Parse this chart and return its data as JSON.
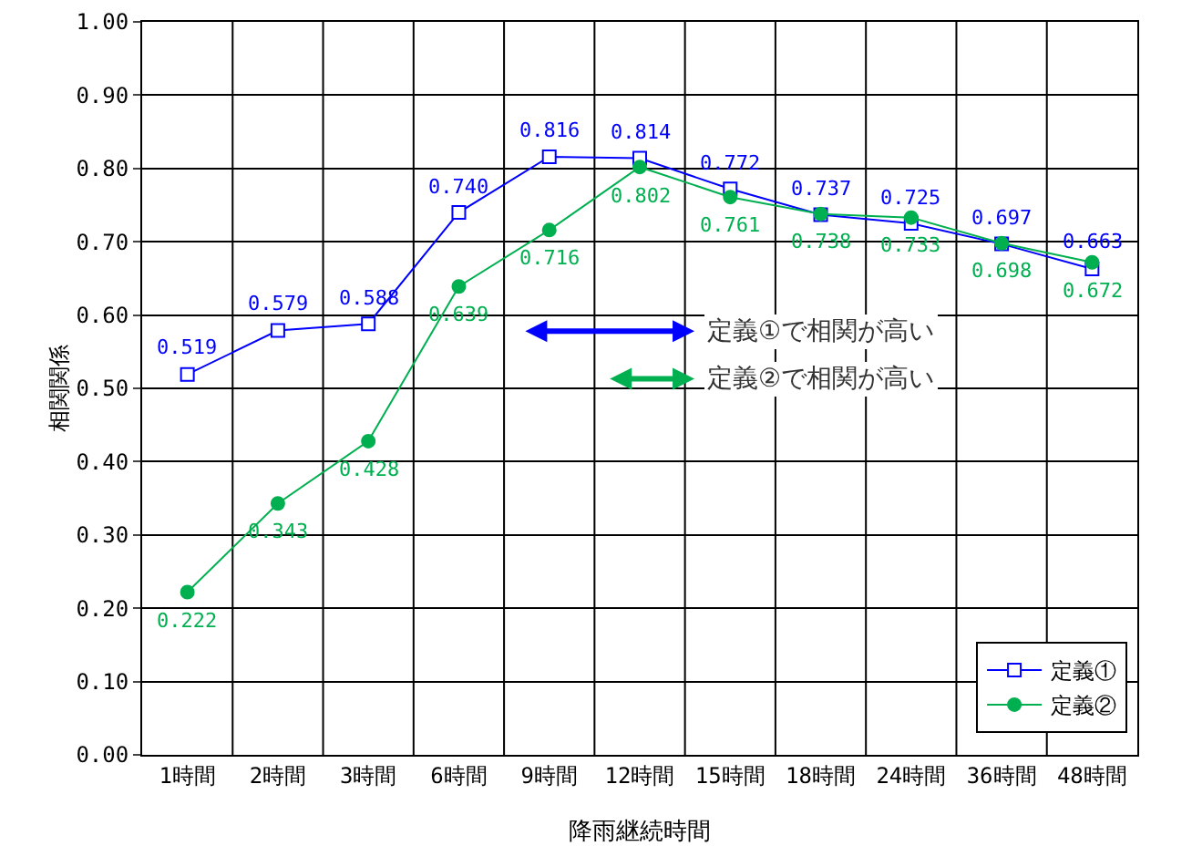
{
  "chart_data": {
    "type": "line",
    "xlabel": "降雨継続時間",
    "ylabel": "相関関係",
    "categories": [
      "1時間",
      "2時間",
      "3時間",
      "6時間",
      "9時間",
      "12時間",
      "15時間",
      "18時間",
      "24時間",
      "36時間",
      "48時間"
    ],
    "series": [
      {
        "name": "定義①",
        "color": "#0000ff",
        "marker": "square",
        "values": [
          0.519,
          0.579,
          0.588,
          0.74,
          0.816,
          0.814,
          0.772,
          0.737,
          0.725,
          0.697,
          0.663
        ],
        "value_labels": [
          "0.519",
          "0.579",
          "0.588",
          "0.740",
          "0.816",
          "0.814",
          "0.772",
          "0.737",
          "0.725",
          "0.697",
          "0.663"
        ]
      },
      {
        "name": "定義②",
        "color": "#00b050",
        "marker": "circle",
        "values": [
          0.222,
          0.343,
          0.428,
          0.639,
          0.716,
          0.802,
          0.761,
          0.738,
          0.733,
          0.698,
          0.672
        ],
        "value_labels": [
          "0.222",
          "0.343",
          "0.428",
          "0.639",
          "0.716",
          "0.802",
          "0.761",
          "0.738",
          "0.733",
          "0.698",
          "0.672"
        ]
      }
    ],
    "ylim": [
      0,
      1
    ],
    "yticks": [
      {
        "value": 0,
        "label": "0.00"
      },
      {
        "value": 0.1,
        "label": "0.10"
      },
      {
        "value": 0.2,
        "label": "0.20"
      },
      {
        "value": 0.3,
        "label": "0.30"
      },
      {
        "value": 0.4,
        "label": "0.40"
      },
      {
        "value": 0.5,
        "label": "0.50"
      },
      {
        "value": 0.6,
        "label": "0.60"
      },
      {
        "value": 0.7,
        "label": "0.70"
      },
      {
        "value": 0.8,
        "label": "0.80"
      },
      {
        "value": 0.9,
        "label": "0.90"
      },
      {
        "value": 1,
        "label": "1.00"
      }
    ],
    "grid": true,
    "legend": "bottom right",
    "line_style": "solid",
    "annotations": [
      "定義①で相関が高い",
      "定義②で相関が高い"
    ]
  }
}
